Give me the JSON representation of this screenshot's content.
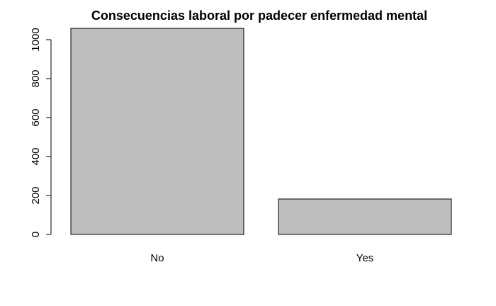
{
  "chart_data": {
    "type": "bar",
    "title": "Consecuencias laboral por padecer enfermedad mental",
    "xlabel": "",
    "ylabel": "",
    "categories": [
      "No",
      "Yes"
    ],
    "values": [
      1058,
      182
    ],
    "ylim": [
      0,
      1000
    ],
    "yticks": [
      0,
      200,
      400,
      600,
      800,
      1000
    ],
    "bar_color": "#bebebe",
    "border_color": "#000000",
    "grid": false,
    "legend": "none"
  }
}
